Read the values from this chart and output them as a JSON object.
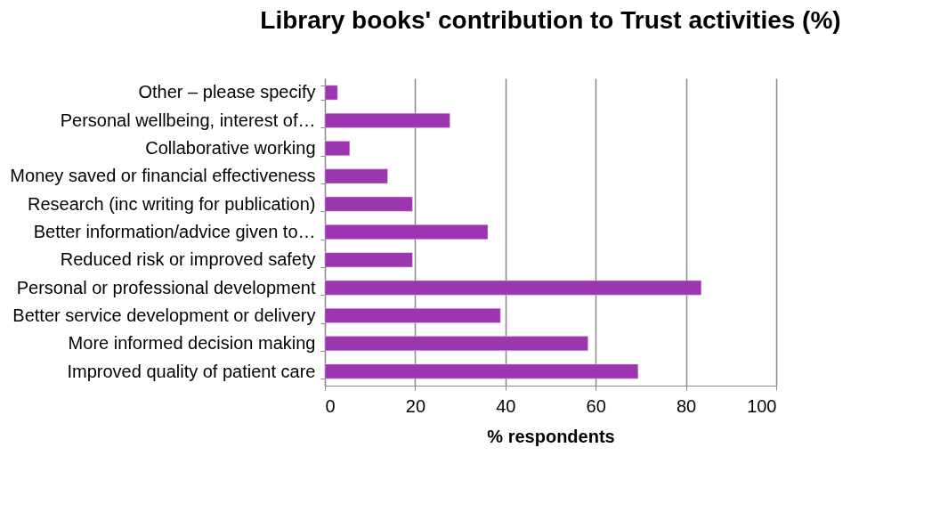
{
  "chart_data": {
    "type": "bar",
    "orientation": "horizontal",
    "title": "Library books' contribution to Trust activities (%)",
    "xlabel": "% respondents",
    "categories": [
      "Other – please specify",
      "Personal wellbeing, interest of…",
      "Collaborative working",
      "Money saved or financial effectiveness",
      "Research (inc writing for publication)",
      "Better information/advice given to…",
      "Reduced risk or improved safety",
      "Personal or professional development",
      "Better service development or delivery",
      "More informed decision making",
      "Improved quality of patient care"
    ],
    "values": [
      2.8,
      27.7,
      5.5,
      13.9,
      19.4,
      36.1,
      19.4,
      83.4,
      38.9,
      58.3,
      69.4
    ],
    "color": "#9c36b0",
    "xlim": [
      0,
      100
    ],
    "xticks": [
      0,
      20,
      40,
      60,
      80,
      100
    ],
    "grid": "x"
  }
}
